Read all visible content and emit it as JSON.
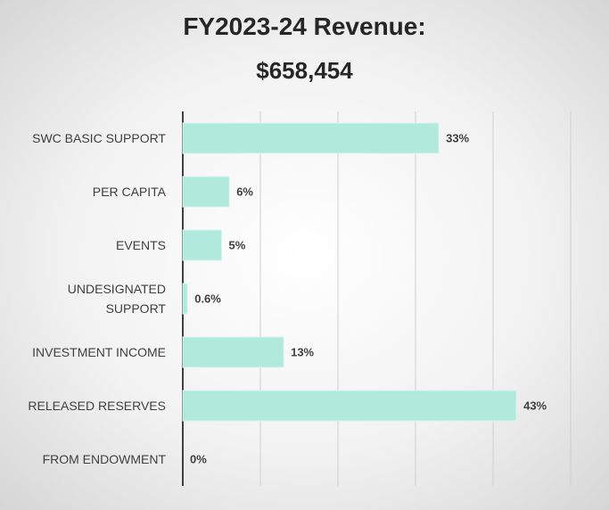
{
  "chart_data": {
    "type": "bar",
    "orientation": "horizontal",
    "title": "FY2023-24 Revenue:",
    "subtitle": "$658,454",
    "categories": [
      "SWC BASIC SUPPORT",
      "PER CAPITA",
      "EVENTS",
      "UNDESIGNATED SUPPORT",
      "INVESTMENT INCOME",
      "RELEASED RESERVES",
      "FROM ENDOWMENT"
    ],
    "values": [
      33,
      6,
      5,
      0.6,
      13,
      43,
      0
    ],
    "value_labels": [
      "33%",
      "6%",
      "5%",
      "0.6%",
      "13%",
      "43%",
      "0%"
    ],
    "color": "#b2e9dd",
    "xlim": [
      0,
      50
    ],
    "xticks": [
      0,
      10,
      20,
      30,
      40,
      50
    ],
    "grid": true
  }
}
